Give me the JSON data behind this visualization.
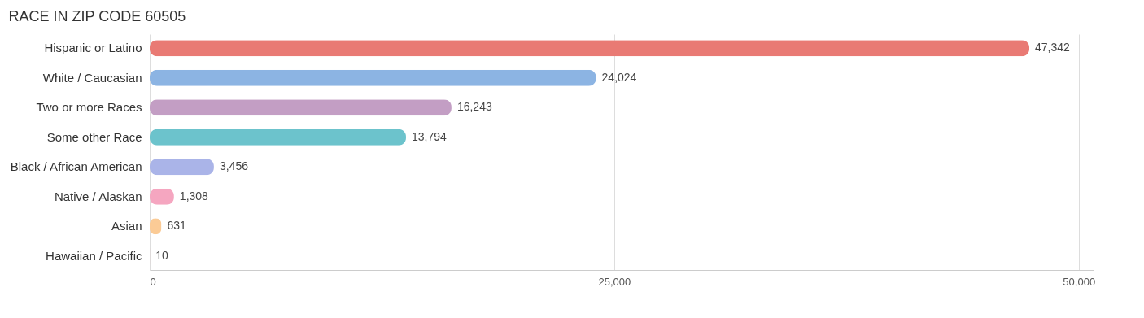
{
  "chart_data": {
    "type": "bar",
    "orientation": "horizontal",
    "title": "RACE IN ZIP CODE 60505",
    "categories": [
      "Hispanic or Latino",
      "White / Caucasian",
      "Two or more Races",
      "Some other Race",
      "Black / African American",
      "Native / Alaskan",
      "Asian",
      "Hawaiian / Pacific"
    ],
    "values": [
      47342,
      24024,
      16243,
      13794,
      3456,
      1308,
      631,
      10
    ],
    "colors": [
      "#e97a74",
      "#8cb4e3",
      "#c39ec4",
      "#6cc3cc",
      "#aab4e8",
      "#f5a6c0",
      "#fbcb96",
      "#f1aeab"
    ],
    "xlim": [
      0,
      50800
    ],
    "xticks": [
      {
        "value": 0,
        "label": "0"
      },
      {
        "value": 25000,
        "label": "25,000"
      },
      {
        "value": 50000,
        "label": "50,000"
      }
    ],
    "value_labels": [
      "47,342",
      "24,024",
      "16,243",
      "13,794",
      "3,456",
      "1,308",
      "631",
      "10"
    ],
    "grid": "x"
  }
}
